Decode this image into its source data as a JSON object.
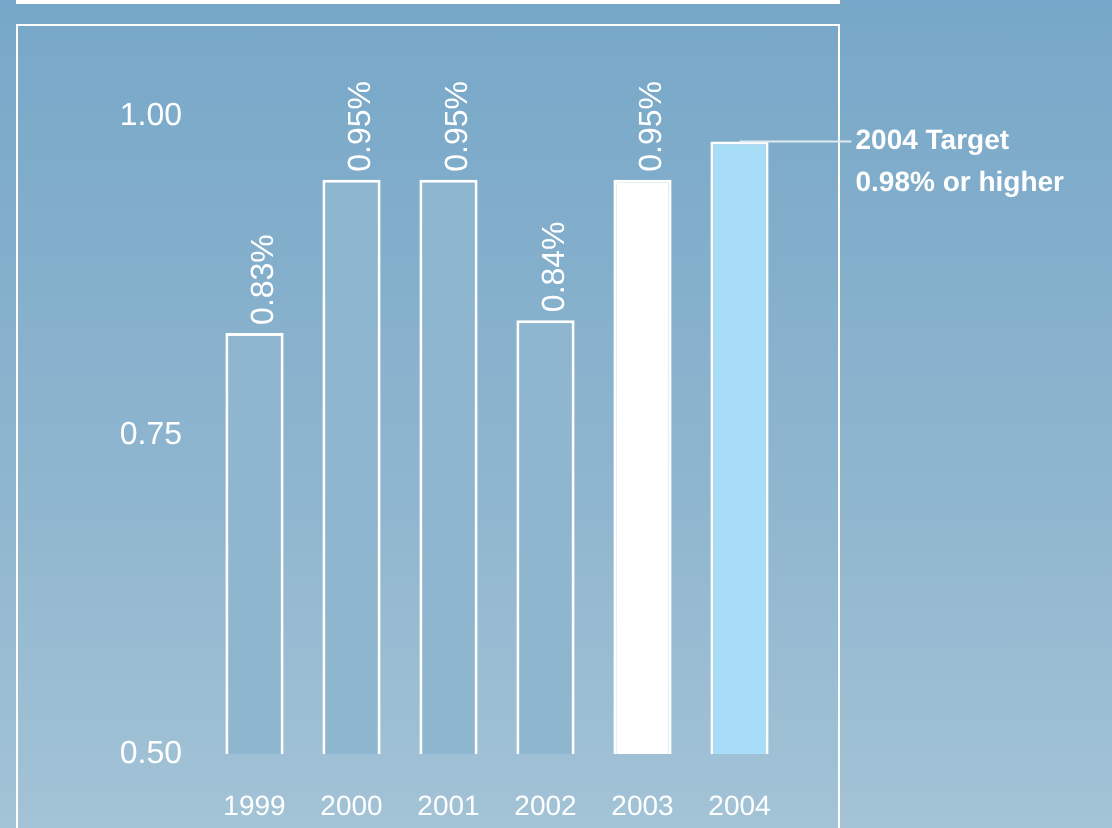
{
  "chart_data": {
    "type": "bar",
    "categories": [
      "1999",
      "2000",
      "2001",
      "2002",
      "2003",
      "2004"
    ],
    "values": [
      0.83,
      0.95,
      0.95,
      0.84,
      0.95,
      0.98
    ],
    "colors": [
      "#8fb6cf",
      "#8fb6cf",
      "#8fb6cf",
      "#8fb6cf",
      "#ffffff",
      "#a8ddf7"
    ],
    "value_labels": [
      "0.83%",
      "0.95%",
      "0.95%",
      "0.84%",
      "0.95%",
      null
    ],
    "ylim": [
      0.5,
      1.0
    ],
    "yticks": [
      {
        "value": 0.5,
        "label": "0.50"
      },
      {
        "value": 0.75,
        "label": "0.75"
      },
      {
        "value": 1.0,
        "label": "1.00"
      }
    ],
    "annotations": [
      {
        "text": "2004 Target\n0.98% or higher",
        "x": "2004",
        "y": 0.98
      }
    ]
  }
}
